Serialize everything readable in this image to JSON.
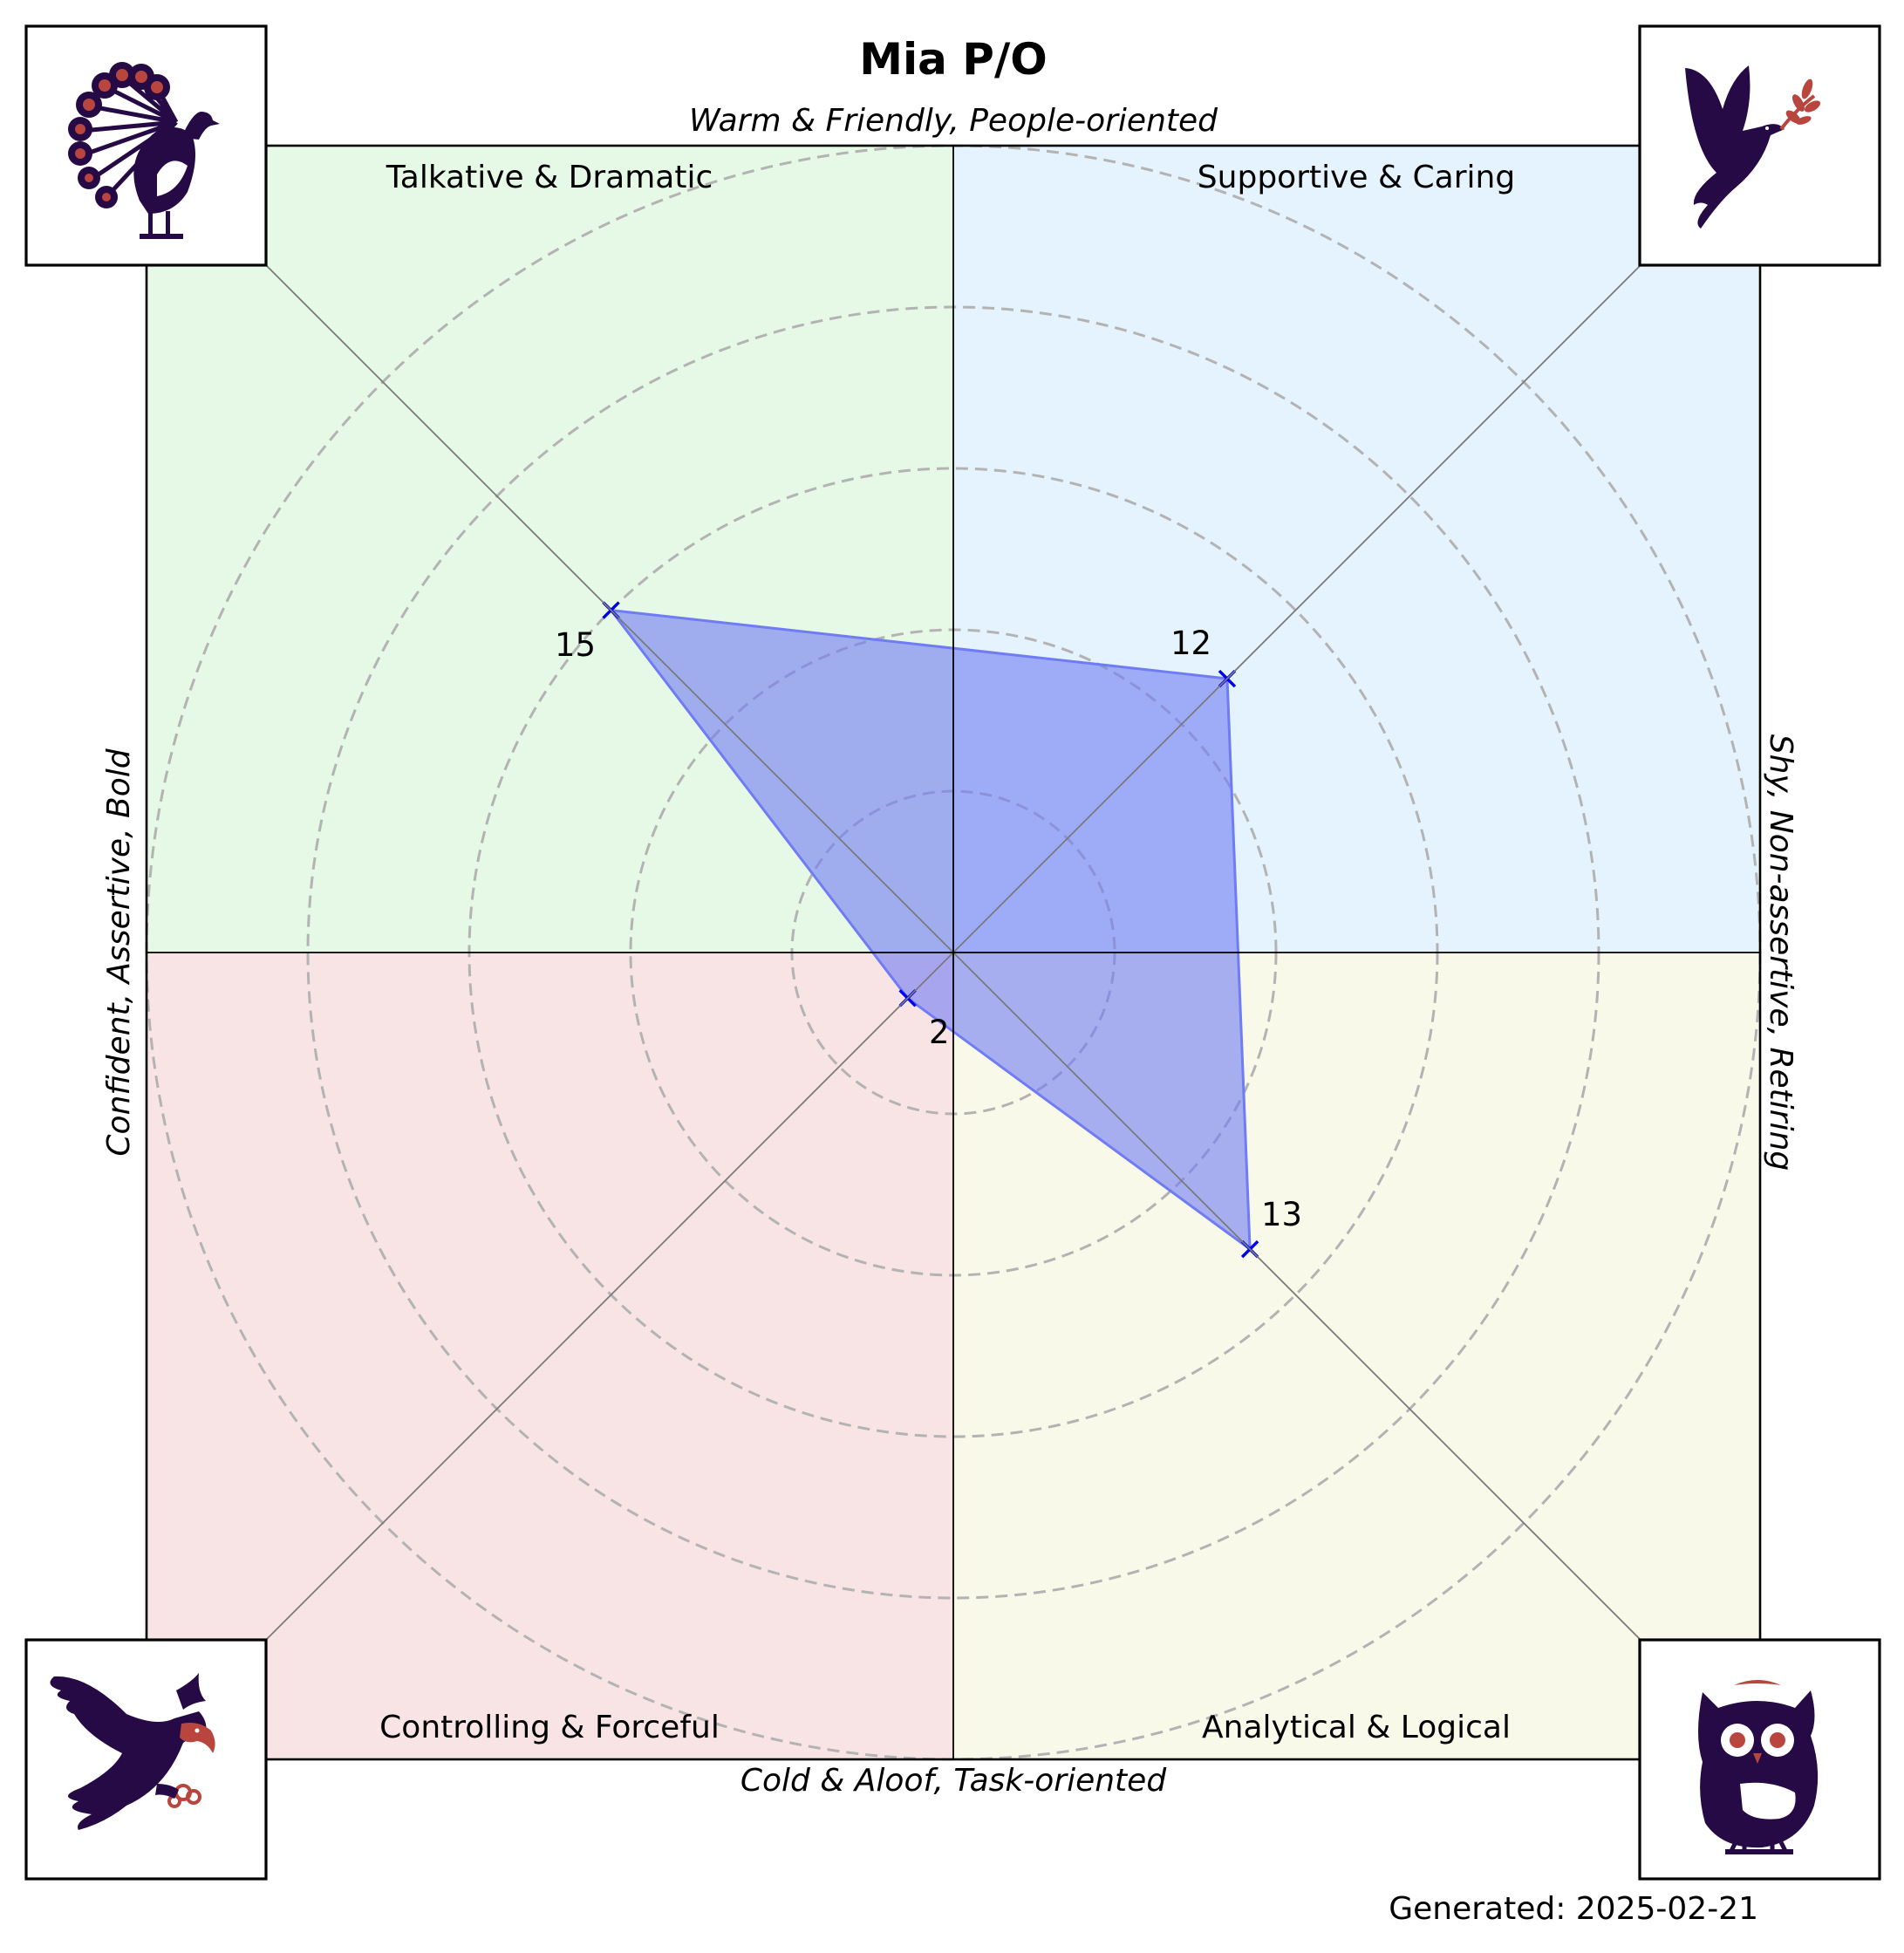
{
  "title": "Mia P/O",
  "axes": {
    "top": "Warm & Friendly, People-oriented",
    "bottom": "Cold & Aloof, Task-oriented",
    "left": "Confident, Assertive, Bold",
    "right": "Shy, Non-assertive, Retiring"
  },
  "quadrants": {
    "top_left": "Talkative & Dramatic",
    "top_right": "Supportive & Caring",
    "bottom_left": "Controlling & Forceful",
    "bottom_right": "Analytical & Logical"
  },
  "icons": {
    "top_left": "peacock-icon",
    "top_right": "dove-icon",
    "bottom_left": "eagle-icon",
    "bottom_right": "owl-icon"
  },
  "footer": "Generated: 2025-02-21",
  "colors": {
    "top_left": "#e6f8e6",
    "top_right": "#e4f3fd",
    "bottom_left": "#f9e4e5",
    "bottom_right": "#f9f9ea",
    "fill": "#6f7cf4",
    "marker": "#0000ee",
    "icon_dark": "#260a45",
    "icon_accent": "#b8463e"
  },
  "chart_data": {
    "type": "radar",
    "title": "Mia P/O",
    "r_max": 25,
    "rings": [
      5,
      10,
      15,
      20,
      25
    ],
    "grid": true,
    "categories": [
      "Talkative & Dramatic",
      "Supportive & Caring",
      "Analytical & Logical",
      "Controlling & Forceful"
    ],
    "values": [
      15,
      12,
      13,
      2
    ],
    "value_labels": [
      "15",
      "12",
      "13",
      "2"
    ]
  }
}
